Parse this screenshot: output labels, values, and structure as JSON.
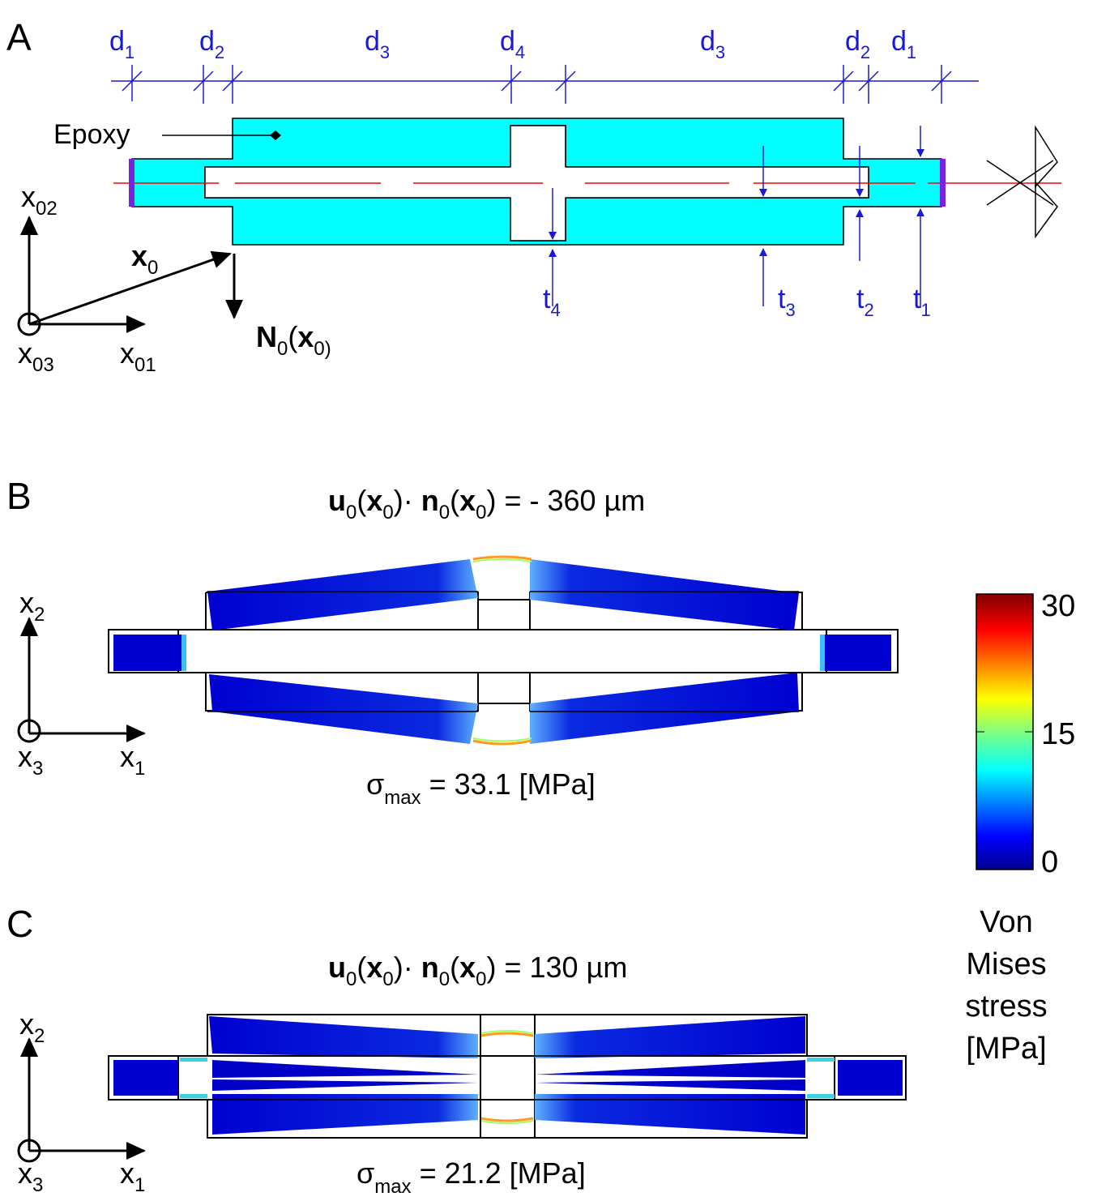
{
  "colors": {
    "epoxy": "#00ffff",
    "dimension": "#1a1ad6",
    "centerline": "#ff0000",
    "clamp": "#7b22e0",
    "stress_low": "#0000cc"
  },
  "panel_a": {
    "label": "A",
    "epoxy_label": "Epoxy",
    "dims": {
      "d1": "d",
      "d1_sub": "1",
      "d2": "d",
      "d2_sub": "2",
      "d3": "d",
      "d3_sub": "3",
      "d4": "d",
      "d4_sub": "4"
    },
    "thick": {
      "t1": "t",
      "t1_sub": "1",
      "t2": "t",
      "t2_sub": "2",
      "t3": "t",
      "t3_sub": "3",
      "t4": "t",
      "t4_sub": "4"
    },
    "axes": {
      "x02": "x",
      "x02_sub": "02",
      "x01": "x",
      "x01_sub": "01",
      "x03": "x",
      "x03_sub": "03",
      "vec": "x",
      "vec_sub": "0",
      "normal": "N",
      "normal_sub": "0",
      "normal_arg": "x",
      "normal_arg_sub": "0"
    }
  },
  "panel_b": {
    "label": "B",
    "eq_u": "u",
    "eq_u_sub": "0",
    "eq_x": "x",
    "eq_x_sub": "0",
    "eq_n": "n",
    "eq_n_sub": "0",
    "eq_x2": "x",
    "eq_x2_sub": "0",
    "eq_value": "= - 360 µm",
    "sigma": "σ",
    "sigma_sub": "max",
    "sigma_value": "= 33.1 [MPa]",
    "axis_x2": "x",
    "axis_x2_sub": "2",
    "axis_x1": "x",
    "axis_x1_sub": "1",
    "axis_x3": "x",
    "axis_x3_sub": "3"
  },
  "panel_c": {
    "label": "C",
    "eq_u": "u",
    "eq_u_sub": "0",
    "eq_x": "x",
    "eq_x_sub": "0",
    "eq_n": "n",
    "eq_n_sub": "0",
    "eq_x2": "x",
    "eq_x2_sub": "0",
    "eq_value": "= 130 µm",
    "sigma": "σ",
    "sigma_sub": "max",
    "sigma_value": "= 21.2 [MPa]",
    "axis_x2": "x",
    "axis_x2_sub": "2",
    "axis_x1": "x",
    "axis_x1_sub": "1",
    "axis_x3": "x",
    "axis_x3_sub": "3"
  },
  "colorbar": {
    "ticks": [
      "30",
      "15",
      "0"
    ],
    "title_lines": [
      "Von",
      "Mises",
      "stress",
      "[MPa]"
    ]
  }
}
